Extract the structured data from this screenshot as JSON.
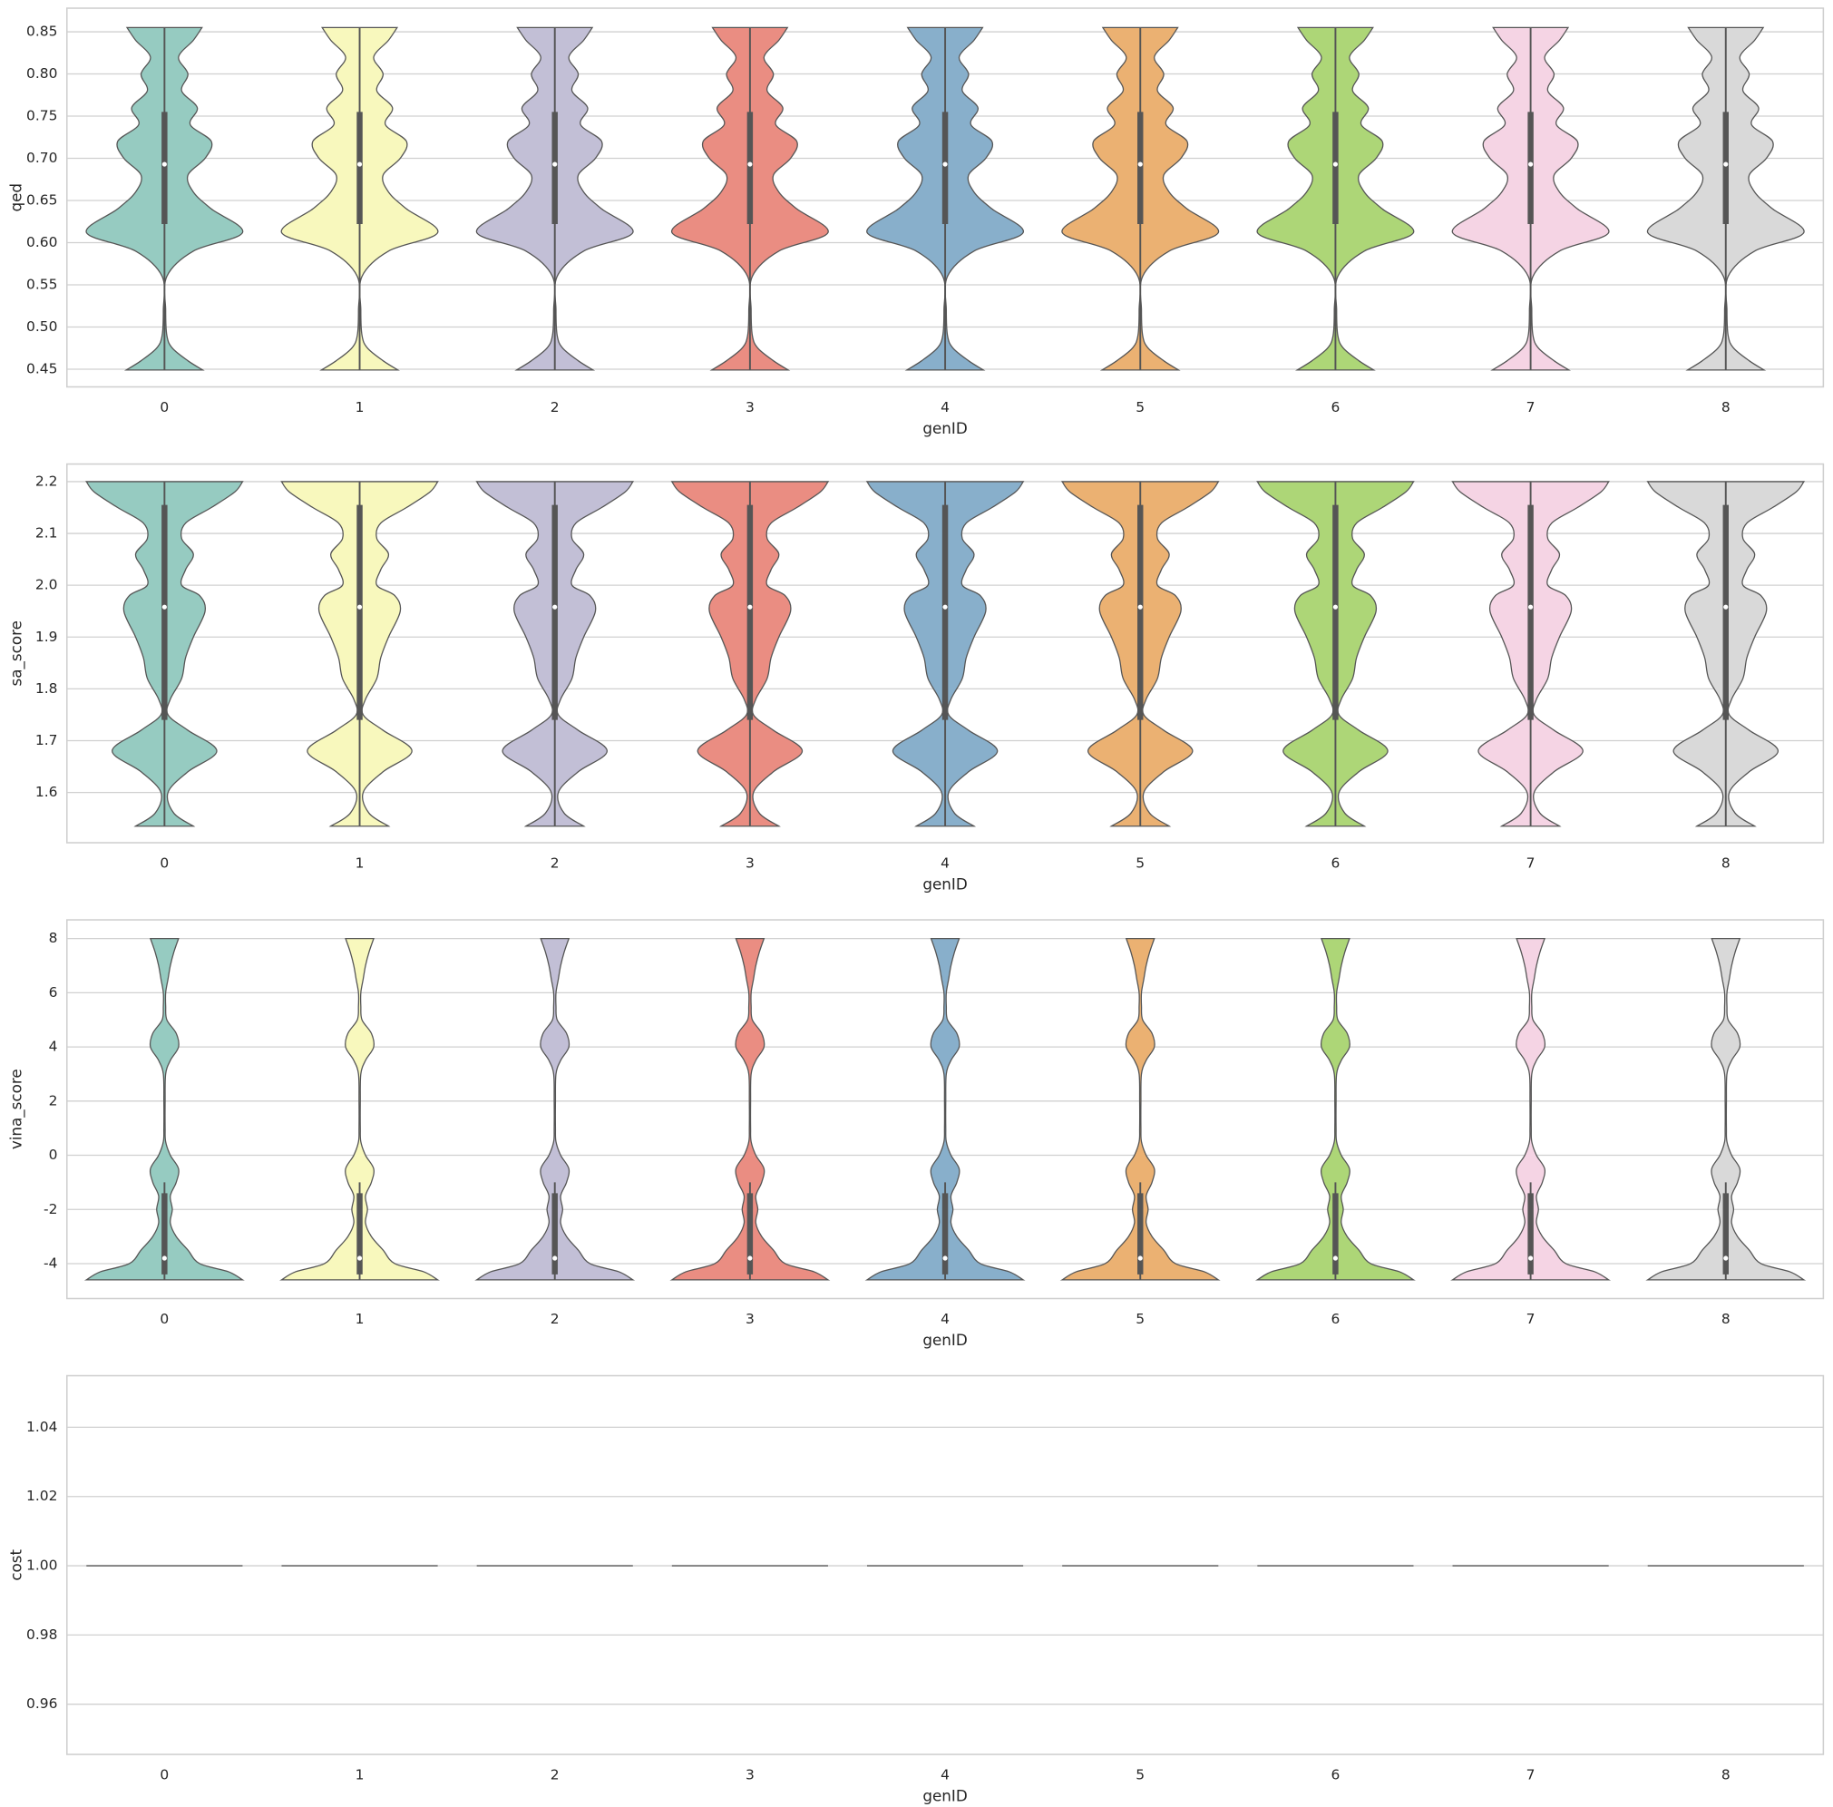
{
  "chart_data": [
    {
      "type": "violin",
      "xlabel": "genID",
      "ylabel": "qed",
      "categories": [
        "0",
        "1",
        "2",
        "3",
        "4",
        "5",
        "6",
        "7",
        "8"
      ],
      "colors": [
        "#96cbc1",
        "#f8f8bd",
        "#c2bfd6",
        "#ea8d82",
        "#88afcb",
        "#ebb172",
        "#add677",
        "#f5d4e4",
        "#d9d9d9"
      ],
      "ylim": [
        0.429,
        0.878
      ],
      "yticks": [
        0.45,
        {
          "value": 0.5,
          "label": "0.50"
        },
        0.55,
        {
          "value": 0.6,
          "label": "0.60"
        },
        0.65,
        {
          "value": 0.7,
          "label": "0.70"
        },
        0.75,
        {
          "value": 0.8,
          "label": "0.80"
        },
        0.85
      ],
      "grid": true,
      "min": 0.449,
      "q1": 0.622,
      "median": 0.693,
      "q3": 0.755,
      "max": 0.855,
      "whiskers": [
        0.449,
        0.855
      ],
      "density": {
        "y": [
          0.449,
          0.46,
          0.475,
          0.49,
          0.52,
          0.56,
          0.59,
          0.612,
          0.64,
          0.66,
          0.68,
          0.7,
          0.72,
          0.74,
          0.76,
          0.78,
          0.8,
          0.82,
          0.84,
          0.855
        ],
        "width": [
          0.49,
          0.3,
          0.1,
          0.03,
          0.015,
          0.03,
          0.37,
          1.0,
          0.6,
          0.37,
          0.3,
          0.52,
          0.6,
          0.33,
          0.42,
          0.22,
          0.3,
          0.18,
          0.37,
          0.48
        ]
      }
    },
    {
      "type": "violin",
      "xlabel": "genID",
      "ylabel": "sa_score",
      "categories": [
        "0",
        "1",
        "2",
        "3",
        "4",
        "5",
        "6",
        "7",
        "8"
      ],
      "colors": [
        "#96cbc1",
        "#f8f8bd",
        "#c2bfd6",
        "#ea8d82",
        "#88afcb",
        "#ebb172",
        "#add677",
        "#f5d4e4",
        "#d9d9d9"
      ],
      "ylim": [
        1.503,
        2.234
      ],
      "yticks": [
        1.6,
        1.7,
        1.8,
        1.9,
        {
          "value": 2.0,
          "label": "2.0"
        },
        2.1,
        2.2
      ],
      "grid": true,
      "min": 1.535,
      "q1": 1.74,
      "median": 1.958,
      "q3": 2.155,
      "max": 2.2,
      "whiskers": [
        1.535,
        2.2
      ],
      "density": {
        "y": [
          1.535,
          1.56,
          1.6,
          1.64,
          1.68,
          1.72,
          1.75,
          1.78,
          1.82,
          1.86,
          1.9,
          1.95,
          1.98,
          2.0,
          2.03,
          2.06,
          2.09,
          2.12,
          2.15,
          2.18,
          2.2
        ],
        "width": [
          0.37,
          0.12,
          0.045,
          0.3,
          0.67,
          0.3,
          0.045,
          0.075,
          0.22,
          0.27,
          0.37,
          0.52,
          0.45,
          0.22,
          0.27,
          0.37,
          0.22,
          0.27,
          0.6,
          0.9,
          1.0
        ]
      }
    },
    {
      "type": "violin",
      "xlabel": "genID",
      "ylabel": "vina_score",
      "categories": [
        "0",
        "1",
        "2",
        "3",
        "4",
        "5",
        "6",
        "7",
        "8"
      ],
      "colors": [
        "#96cbc1",
        "#f8f8bd",
        "#c2bfd6",
        "#ea8d82",
        "#88afcb",
        "#ebb172",
        "#add677",
        "#f5d4e4",
        "#d9d9d9"
      ],
      "ylim": [
        -5.29,
        8.69
      ],
      "yticks": [
        -4,
        -2,
        0,
        2,
        4,
        6,
        8
      ],
      "grid": true,
      "min": -4.6,
      "q1": -4.4,
      "median": -3.8,
      "q3": -1.4,
      "max": 8.0,
      "whiskers": [
        -4.6,
        -1.0
      ],
      "density": {
        "y": [
          -4.6,
          -4.3,
          -4.0,
          -3.5,
          -3.0,
          -2.5,
          -2.0,
          -1.5,
          -1.0,
          -0.5,
          0,
          0.5,
          1,
          2,
          3,
          3.5,
          4,
          4.5,
          5,
          5.5,
          6,
          6.5,
          7,
          7.5,
          8
        ],
        "width": [
          1.0,
          0.82,
          0.45,
          0.3,
          0.15,
          0.075,
          0.1,
          0.075,
          0.15,
          0.18,
          0.075,
          0.015,
          0.008,
          0.008,
          0.015,
          0.075,
          0.18,
          0.15,
          0.03,
          0.015,
          0.015,
          0.045,
          0.075,
          0.12,
          0.18
        ]
      }
    },
    {
      "type": "violin",
      "xlabel": "genID",
      "ylabel": "cost",
      "categories": [
        "0",
        "1",
        "2",
        "3",
        "4",
        "5",
        "6",
        "7",
        "8"
      ],
      "colors": [
        "#96cbc1",
        "#f8f8bd",
        "#c2bfd6",
        "#ea8d82",
        "#88afcb",
        "#ebb172",
        "#add677",
        "#f5d4e4",
        "#d9d9d9"
      ],
      "ylim": [
        0.9455,
        1.0549
      ],
      "yticks": [
        0.96,
        0.98,
        {
          "value": 1.0,
          "label": "1.00"
        },
        1.02,
        1.04
      ],
      "grid": true,
      "min": 1,
      "q1": 1,
      "median": 1,
      "q3": 1,
      "max": 1,
      "whiskers": [
        1,
        1
      ],
      "density": {
        "y": [
          1
        ],
        "width": [
          1
        ]
      }
    }
  ]
}
